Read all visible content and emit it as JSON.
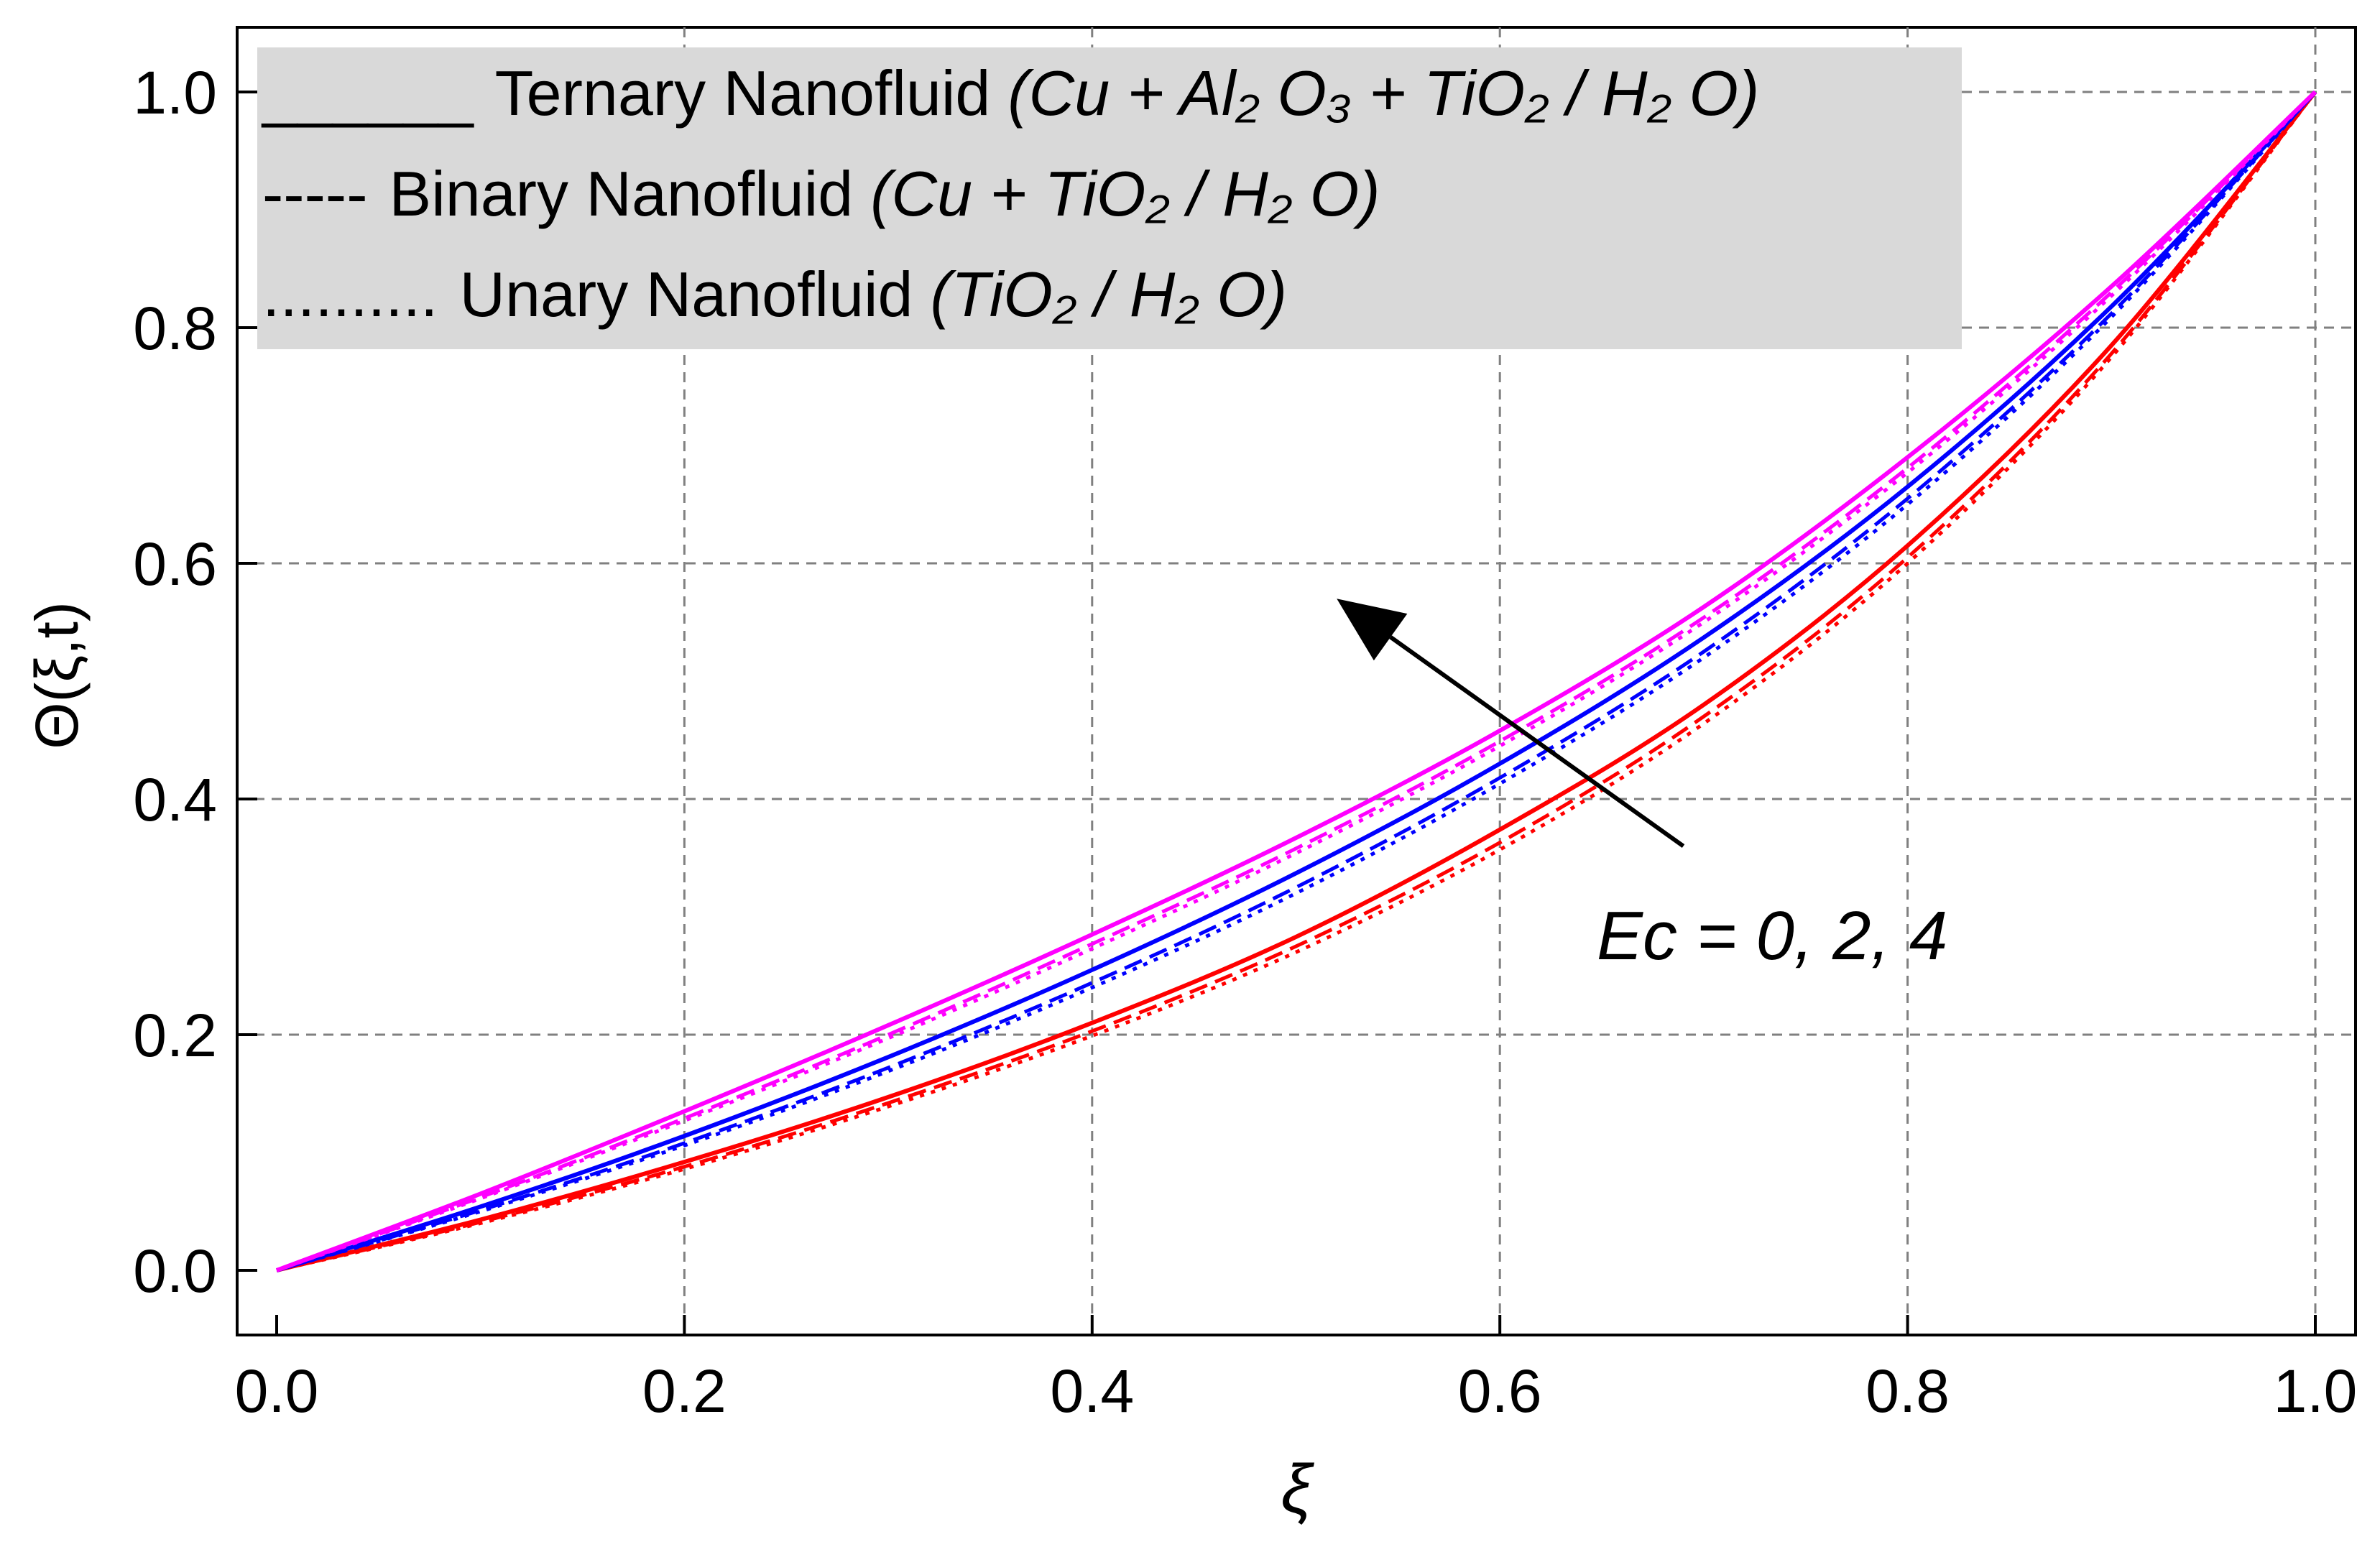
{
  "chart_data": {
    "type": "line",
    "title": "",
    "xlabel": "ξ",
    "ylabel": "Θ(ξ,t)",
    "xlim": [
      0.0,
      1.0
    ],
    "ylim": [
      0.0,
      1.0
    ],
    "grid": true,
    "grid_style": "dashed",
    "x_ticks": [
      "0.0",
      "0.2",
      "0.4",
      "0.6",
      "0.8",
      "1.0"
    ],
    "y_ticks": [
      "0.0",
      "0.2",
      "0.4",
      "0.6",
      "0.8",
      "1.0"
    ],
    "x": [
      0.0,
      0.1,
      0.2,
      0.3,
      0.4,
      0.5,
      0.6,
      0.7,
      0.8,
      0.9,
      1.0
    ],
    "legend": {
      "position": "top-left",
      "entries": [
        {
          "style": "solid",
          "key": "______",
          "label": "Ternary Nanofluid",
          "formula": "(Cu + Al₂ O₃ + TiO₂ / H₂ O)"
        },
        {
          "style": "dashed",
          "key": "-----",
          "label": "Binary Nanofluid",
          "formula": "(Cu + TiO₂ / H₂ O)"
        },
        {
          "style": "dotted",
          "key": "..........",
          "label": "Unary Nanofluid",
          "formula": "(TiO₂ / H₂ O)"
        }
      ]
    },
    "annotation": {
      "text": "Ec = 0, 2, 4",
      "arrow_from": [
        0.69,
        0.36
      ],
      "arrow_to": [
        0.52,
        0.57
      ]
    },
    "series": [
      {
        "name": "Ternary, Ec = 0",
        "fluid": "Ternary",
        "ec": 0,
        "color": "#ff0000",
        "dash": "solid",
        "values": [
          0.0,
          0.043,
          0.092,
          0.147,
          0.21,
          0.283,
          0.374,
          0.48,
          0.615,
          0.785,
          1.0
        ]
      },
      {
        "name": "Binary, Ec = 0",
        "fluid": "Binary",
        "ec": 0,
        "color": "#ff0000",
        "dash": "dashed",
        "values": [
          0.0,
          0.041,
          0.088,
          0.142,
          0.203,
          0.275,
          0.363,
          0.47,
          0.605,
          0.778,
          1.0
        ]
      },
      {
        "name": "Unary, Ec = 0",
        "fluid": "Unary",
        "ec": 0,
        "color": "#ff0000",
        "dash": "dotted",
        "values": [
          0.0,
          0.04,
          0.086,
          0.139,
          0.199,
          0.27,
          0.357,
          0.464,
          0.6,
          0.775,
          1.0
        ]
      },
      {
        "name": "Ternary, Ec = 2",
        "fluid": "Ternary",
        "ec": 2,
        "color": "#0000ff",
        "dash": "solid",
        "values": [
          0.0,
          0.054,
          0.114,
          0.181,
          0.255,
          0.337,
          0.43,
          0.537,
          0.665,
          0.818,
          1.0
        ]
      },
      {
        "name": "Binary, Ec = 2",
        "fluid": "Binary",
        "ec": 2,
        "color": "#0000ff",
        "dash": "dashed",
        "values": [
          0.0,
          0.051,
          0.108,
          0.172,
          0.244,
          0.325,
          0.418,
          0.525,
          0.655,
          0.812,
          1.0
        ]
      },
      {
        "name": "Unary, Ec = 2",
        "fluid": "Unary",
        "ec": 2,
        "color": "#0000ff",
        "dash": "dotted",
        "values": [
          0.0,
          0.05,
          0.106,
          0.169,
          0.24,
          0.32,
          0.413,
          0.52,
          0.65,
          0.809,
          1.0
        ]
      },
      {
        "name": "Ternary, Ec = 4",
        "fluid": "Ternary",
        "ec": 4,
        "color": "#ff00ff",
        "dash": "solid",
        "values": [
          0.0,
          0.065,
          0.135,
          0.208,
          0.285,
          0.367,
          0.458,
          0.563,
          0.69,
          0.835,
          1.0
        ]
      },
      {
        "name": "Binary, Ec = 4",
        "fluid": "Binary",
        "ec": 4,
        "color": "#ff00ff",
        "dash": "dashed",
        "values": [
          0.0,
          0.062,
          0.129,
          0.2,
          0.277,
          0.358,
          0.449,
          0.554,
          0.681,
          0.83,
          1.0
        ]
      },
      {
        "name": "Unary, Ec = 4",
        "fluid": "Unary",
        "ec": 4,
        "color": "#ff00ff",
        "dash": "dotted",
        "values": [
          0.0,
          0.061,
          0.127,
          0.197,
          0.273,
          0.354,
          0.445,
          0.55,
          0.677,
          0.827,
          1.0
        ]
      }
    ]
  }
}
